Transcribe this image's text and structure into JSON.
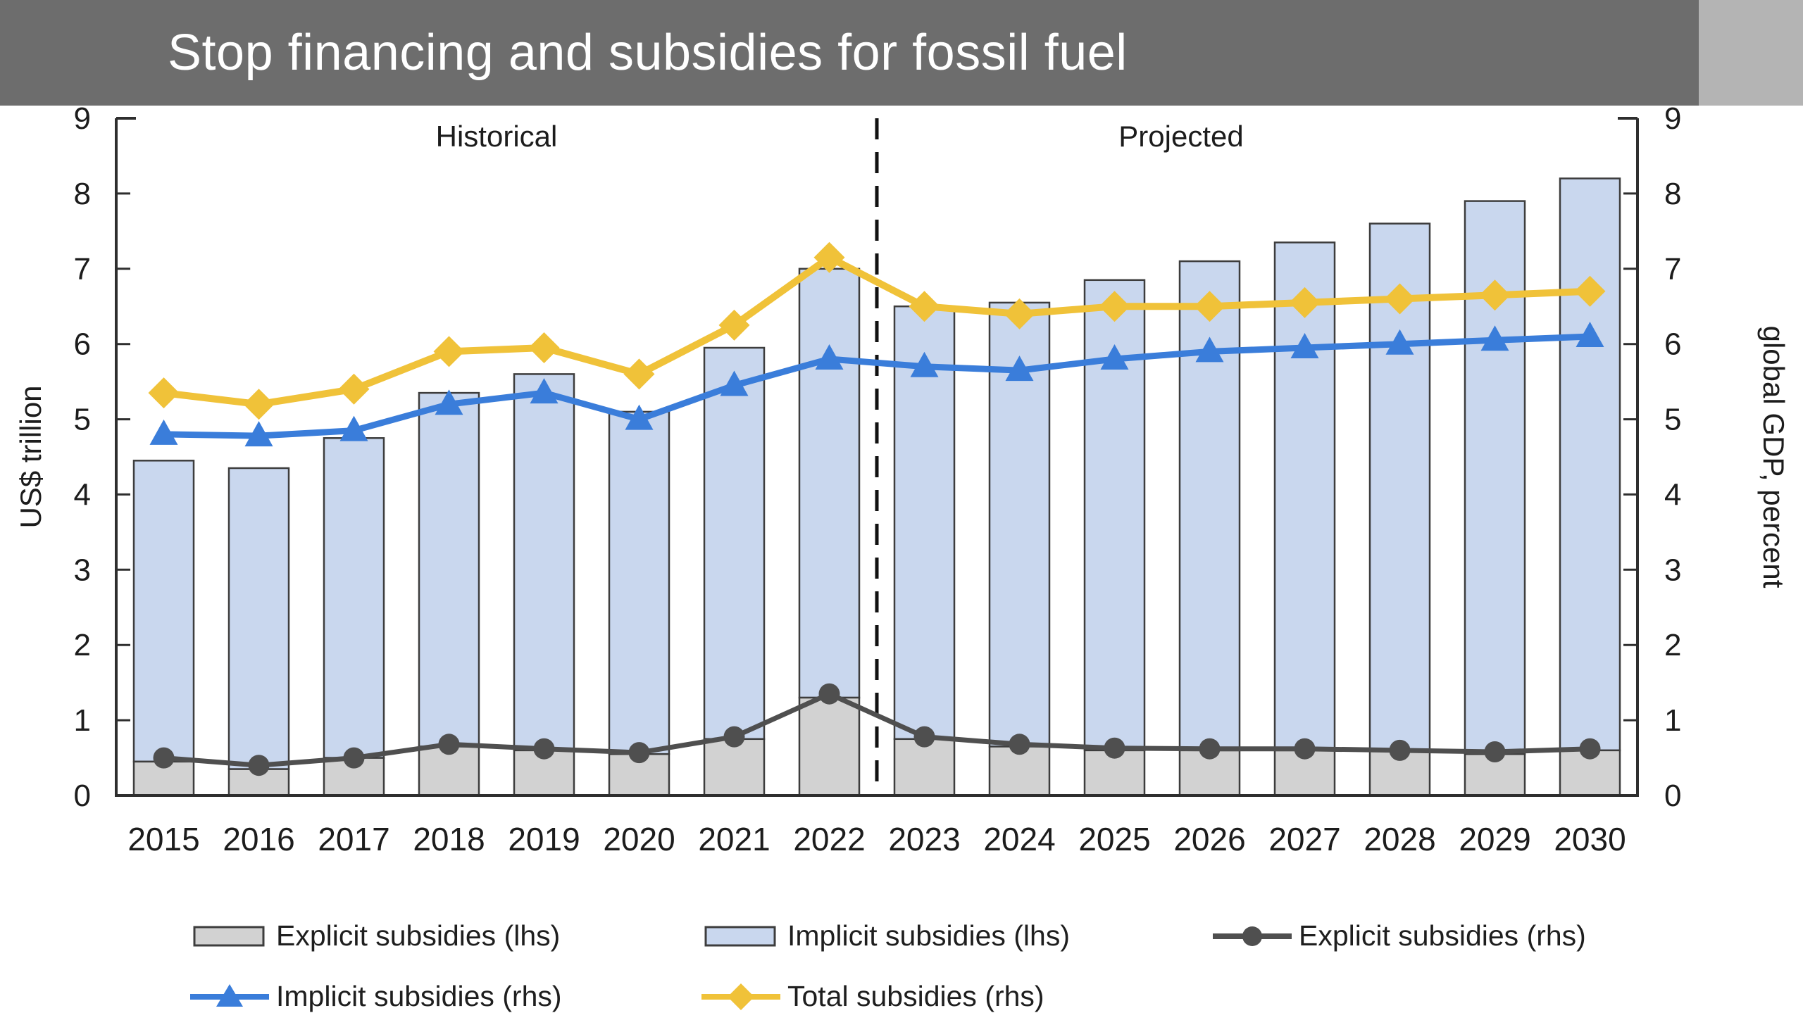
{
  "header": {
    "title": "Stop financing and subsidies for fossil fuel",
    "bg_color": "#6d6d6d",
    "text_color": "#ffffff"
  },
  "chart_data": {
    "type": "bar+line",
    "categories": [
      "2015",
      "2016",
      "2017",
      "2018",
      "2019",
      "2020",
      "2021",
      "2022",
      "2023",
      "2024",
      "2025",
      "2026",
      "2027",
      "2028",
      "2029",
      "2030"
    ],
    "bar_series": [
      {
        "name": "Explicit subsidies (lhs)",
        "axis": "left",
        "color": "#d2d2d2",
        "values": [
          0.45,
          0.35,
          0.5,
          0.65,
          0.6,
          0.55,
          0.75,
          1.3,
          0.75,
          0.65,
          0.6,
          0.6,
          0.6,
          0.6,
          0.55,
          0.6
        ]
      },
      {
        "name": "Implicit subsidies (lhs)",
        "axis": "left",
        "color": "#c9d7ee",
        "values": [
          4.0,
          4.0,
          4.25,
          4.7,
          5.0,
          4.55,
          5.2,
          5.7,
          5.75,
          5.9,
          6.25,
          6.5,
          6.75,
          7.0,
          7.35,
          7.6
        ]
      }
    ],
    "bar_stacking": "stacked",
    "line_series": [
      {
        "name": "Explicit subsidies (rhs)",
        "axis": "right",
        "color": "#4f4f4f",
        "marker": "circle",
        "width": 7,
        "values": [
          0.5,
          0.4,
          0.5,
          0.68,
          0.62,
          0.57,
          0.78,
          1.35,
          0.78,
          0.68,
          0.63,
          0.62,
          0.62,
          0.6,
          0.58,
          0.62
        ]
      },
      {
        "name": "Implicit subsidies (rhs)",
        "axis": "right",
        "color": "#3a7dda",
        "marker": "triangle",
        "width": 9,
        "values": [
          4.8,
          4.78,
          4.85,
          5.2,
          5.35,
          5.0,
          5.45,
          5.8,
          5.7,
          5.65,
          5.8,
          5.9,
          5.95,
          6.0,
          6.05,
          6.1
        ]
      },
      {
        "name": "Total subsidies (rhs)",
        "axis": "right",
        "color": "#f0c239",
        "marker": "diamond",
        "width": 10,
        "values": [
          5.35,
          5.2,
          5.4,
          5.9,
          5.95,
          5.6,
          6.25,
          7.15,
          6.5,
          6.4,
          6.5,
          6.5,
          6.55,
          6.6,
          6.65,
          6.7
        ]
      }
    ],
    "left_axis": {
      "label": "US$ trillion",
      "min": 0,
      "max": 9,
      "ticks": [
        0,
        1,
        2,
        3,
        4,
        5,
        6,
        7,
        8,
        9
      ]
    },
    "right_axis": {
      "label": "global GDP, percent",
      "min": 0,
      "max": 9,
      "ticks": [
        0,
        1,
        2,
        3,
        4,
        5,
        6,
        7,
        8,
        9
      ]
    },
    "annotations": [
      {
        "text": "Historical",
        "x_index": 4.0
      },
      {
        "text": "Projected",
        "x_index": 11.2
      }
    ],
    "divider_index": 8,
    "grid": false,
    "style": {
      "bar_stroke": "#3d3d3d",
      "axis_color": "#2e2e2e",
      "text_color": "#1c1c1c",
      "divider_color": "#111111"
    }
  },
  "legend": {
    "rows": [
      [
        {
          "label": "Explicit subsidies (lhs)",
          "swatch": "bar",
          "color": "#d2d2d2"
        },
        {
          "label": "Implicit subsidies (lhs)",
          "swatch": "bar",
          "color": "#c9d7ee"
        },
        {
          "label": "Explicit subsidies (rhs)",
          "swatch": "line-circle",
          "color": "#4f4f4f"
        }
      ],
      [
        {
          "label": "Implicit subsidies (rhs)",
          "swatch": "line-triangle",
          "color": "#3a7dda"
        },
        {
          "label": "Total subsidies (rhs)",
          "swatch": "line-diamond",
          "color": "#f0c239"
        }
      ]
    ]
  }
}
